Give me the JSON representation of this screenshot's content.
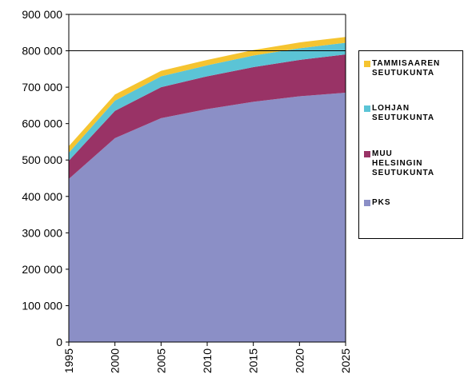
{
  "chart_data": {
    "type": "area",
    "stacked": true,
    "x": [
      1995,
      2000,
      2005,
      2010,
      2015,
      2020,
      2025
    ],
    "ylim": [
      0,
      900000
    ],
    "y_ticks": [
      "0",
      "100 000",
      "200 000",
      "300 000",
      "400 000",
      "500 000",
      "600 000",
      "700 000",
      "800 000",
      "900 000"
    ],
    "x_ticks": [
      "1995",
      "2000",
      "2005",
      "2010",
      "2015",
      "2020",
      "2025"
    ],
    "grid": "horizontal line at 800 000",
    "legend_position": "right",
    "series": [
      {
        "name": "PKS",
        "color": "#8B8FC6",
        "values": [
          448000,
          560000,
          615000,
          640000,
          660000,
          675000,
          685000
        ]
      },
      {
        "name": "MUU HELSINGIN SEUTUKUNTA",
        "color": "#993366",
        "values": [
          50000,
          75000,
          85000,
          90000,
          95000,
          100000,
          105000
        ]
      },
      {
        "name": "LOHJAN SEUTUKUNTA",
        "color": "#5BC4D6",
        "values": [
          22000,
          28000,
          30000,
          30000,
          32000,
          32000,
          32000
        ]
      },
      {
        "name": "TAMMISAAREN SEUTUKUNTA",
        "color": "#F5C430",
        "values": [
          18000,
          17000,
          15000,
          15000,
          15000,
          16000,
          16000
        ]
      }
    ]
  },
  "legend": {
    "items": [
      {
        "label": "TAMMISAAREN\nSEUTUKUNTA",
        "color": "#F5C430"
      },
      {
        "label": "LOHJAN\nSEUTUKUNTA",
        "color": "#5BC4D6"
      },
      {
        "label": "MUU\nHELSINGIN\nSEUTUKUNTA",
        "color": "#993366"
      },
      {
        "label": "PKS",
        "color": "#8B8FC6"
      }
    ]
  }
}
